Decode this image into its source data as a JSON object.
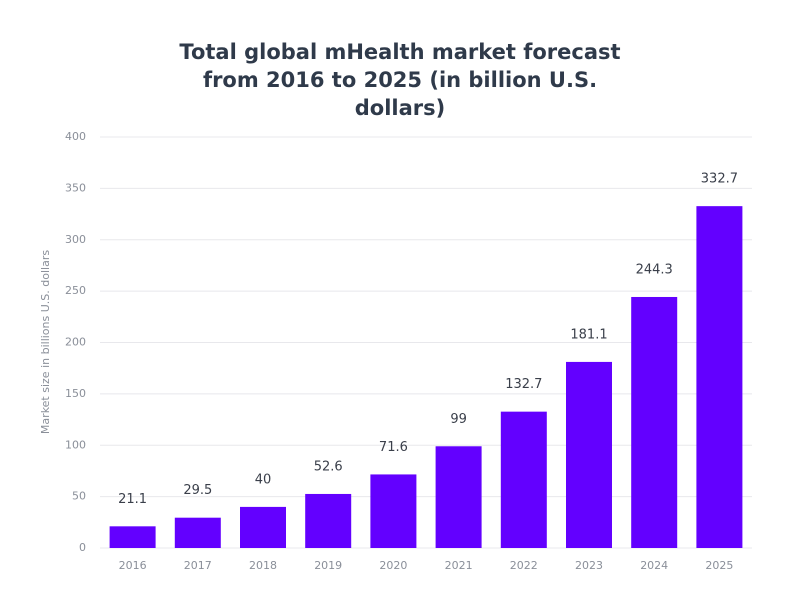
{
  "chart_data": {
    "type": "bar",
    "title": "Total global mHealth market forecast from 2016 to 2025 (in billion U.S. dollars)",
    "y_label": "Market size in billions U.S. dollars",
    "categories": [
      "2016",
      "2017",
      "2018",
      "2019",
      "2020",
      "2021",
      "2022",
      "2023",
      "2024",
      "2025"
    ],
    "values": [
      21.1,
      29.5,
      40,
      52.6,
      71.6,
      99,
      132.7,
      181.1,
      244.3,
      332.7
    ],
    "color": "#6300ff",
    "ylim": [
      0,
      400
    ],
    "yticks": [
      0,
      50,
      100,
      150,
      200,
      250,
      300,
      350,
      400
    ],
    "grid": true
  }
}
